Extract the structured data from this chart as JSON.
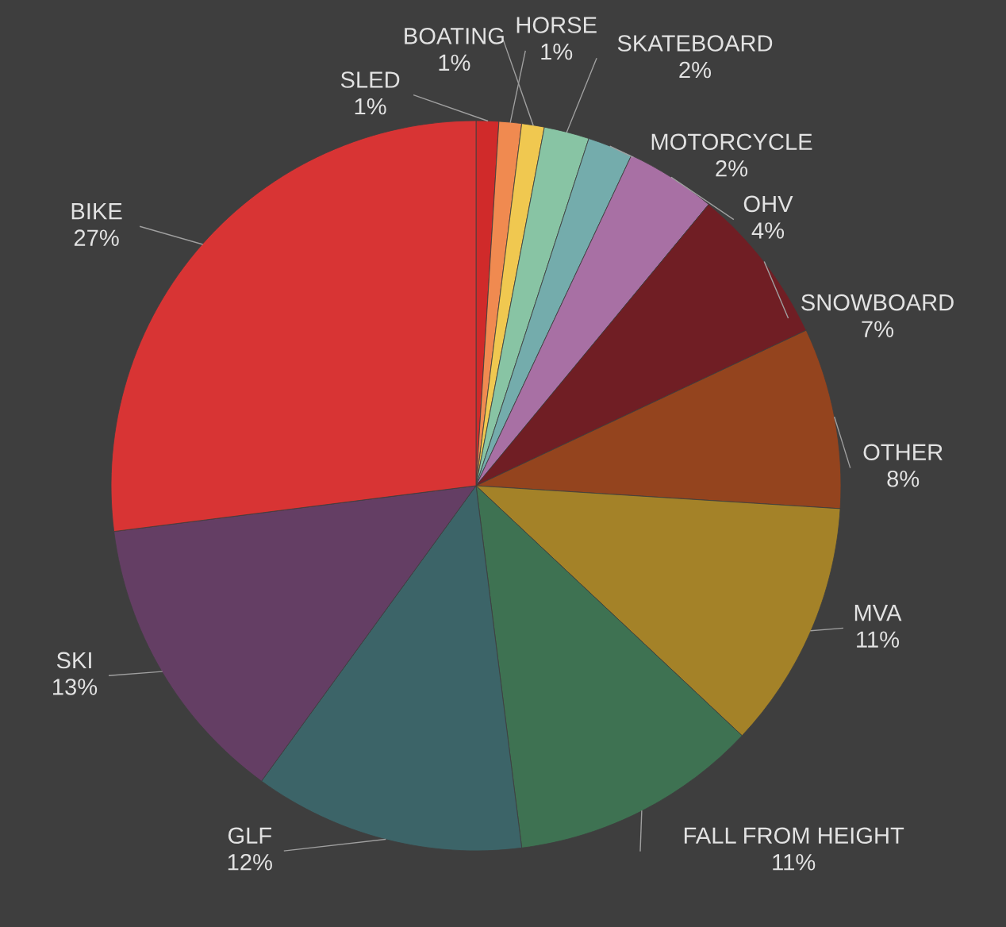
{
  "chart_data": {
    "type": "pie",
    "categories": [
      "SLED",
      "BOATING",
      "HORSE",
      "SKATEBOARD",
      "MOTORCYCLE",
      "OHV",
      "SNOWBOARD",
      "OTHER",
      "MVA",
      "FALL FROM HEIGHT",
      "GLF",
      "SKI",
      "BIKE"
    ],
    "values": [
      1,
      1,
      1,
      2,
      2,
      4,
      7,
      8,
      11,
      11,
      12,
      13,
      27
    ],
    "colors": [
      "#d02a2a",
      "#f08a50",
      "#f0c850",
      "#88c4a4",
      "#74acac",
      "#a870a4",
      "#701e24",
      "#94441e",
      "#a48228",
      "#3e7252",
      "#3c6468",
      "#643e64",
      "#d83434"
    ],
    "value_labels": [
      "1%",
      "1%",
      "1%",
      "2%",
      "2%",
      "4%",
      "7%",
      "8%",
      "11%",
      "11%",
      "12%",
      "13%",
      "27%"
    ]
  }
}
